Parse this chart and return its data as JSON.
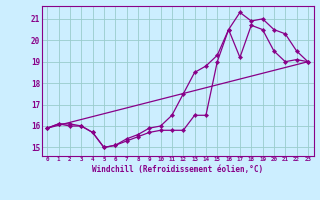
{
  "background_color": "#cceeff",
  "grid_color": "#99cccc",
  "line_color": "#880088",
  "marker_color": "#880088",
  "xlabel": "Windchill (Refroidissement éolien,°C)",
  "xlim": [
    -0.5,
    23.5
  ],
  "ylim": [
    14.6,
    21.6
  ],
  "yticks": [
    15,
    16,
    17,
    18,
    19,
    20,
    21
  ],
  "xticks": [
    0,
    1,
    2,
    3,
    4,
    5,
    6,
    7,
    8,
    9,
    10,
    11,
    12,
    13,
    14,
    15,
    16,
    17,
    18,
    19,
    20,
    21,
    22,
    23
  ],
  "series1_x": [
    0,
    1,
    2,
    3,
    4,
    5,
    6,
    7,
    8,
    9,
    10,
    11,
    12,
    13,
    14,
    15,
    16,
    17,
    18,
    19,
    20,
    21,
    22,
    23
  ],
  "series1_y": [
    15.9,
    16.1,
    16.1,
    16.0,
    15.7,
    15.0,
    15.1,
    15.3,
    15.5,
    15.7,
    15.8,
    15.8,
    15.8,
    16.5,
    16.5,
    19.0,
    20.5,
    21.3,
    20.9,
    21.0,
    20.5,
    20.3,
    19.5,
    19.0
  ],
  "series2_x": [
    0,
    1,
    2,
    3,
    4,
    5,
    6,
    7,
    8,
    9,
    10,
    11,
    12,
    13,
    14,
    15,
    16,
    17,
    18,
    19,
    20,
    21,
    22,
    23
  ],
  "series2_y": [
    15.9,
    16.1,
    16.0,
    16.0,
    15.7,
    15.0,
    15.1,
    15.4,
    15.6,
    15.9,
    16.0,
    16.5,
    17.5,
    18.5,
    18.8,
    19.3,
    20.5,
    19.2,
    20.7,
    20.5,
    19.5,
    19.0,
    19.1,
    19.0
  ],
  "series3_x": [
    0,
    23
  ],
  "series3_y": [
    15.9,
    19.0
  ]
}
